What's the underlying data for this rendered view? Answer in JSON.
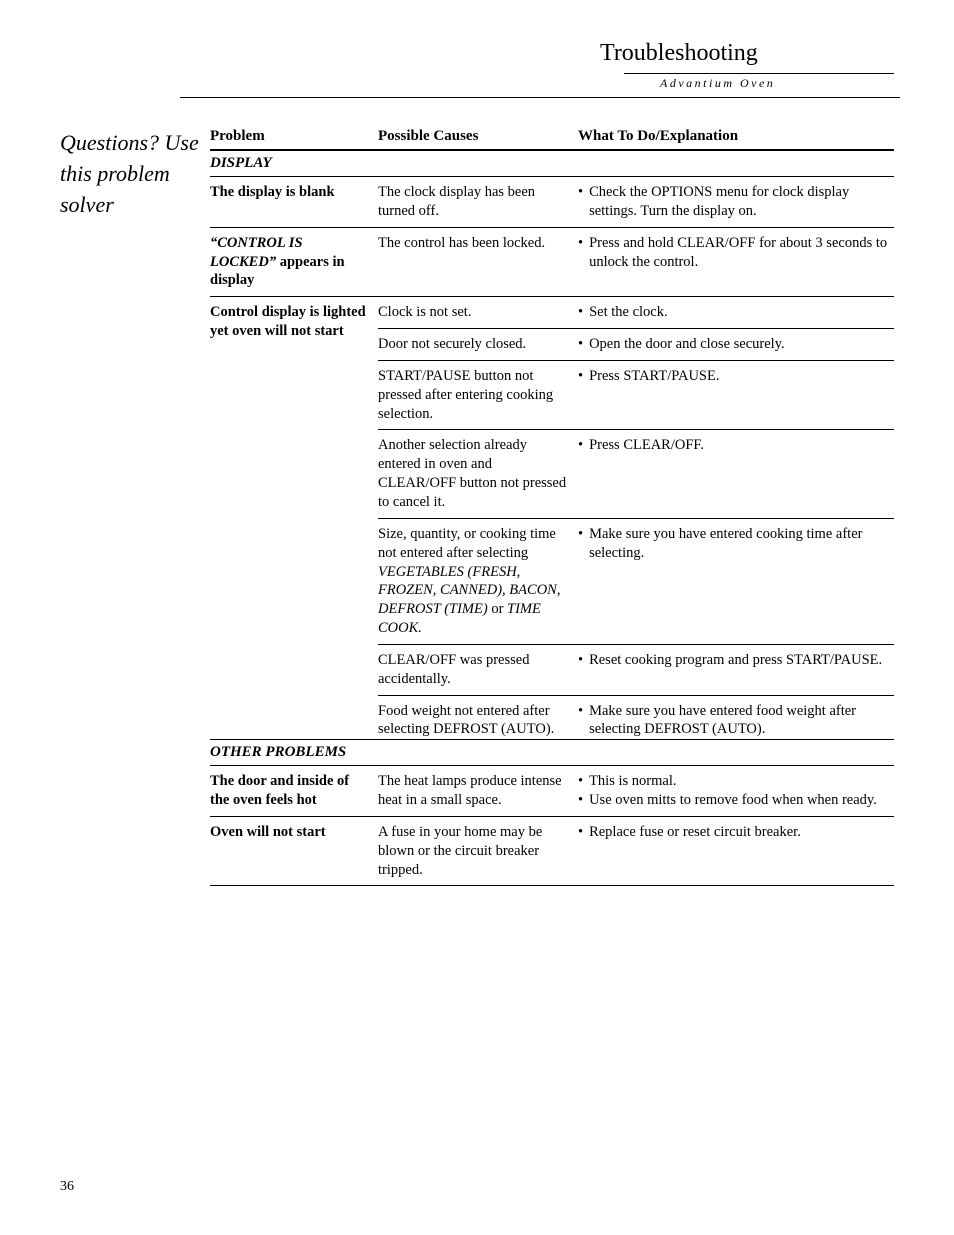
{
  "header": {
    "title": "Troubleshooting",
    "subtitle": "Advantium Oven"
  },
  "sidebar": {
    "text": "Questions? Use this problem solver"
  },
  "columns": {
    "problem": "Problem",
    "cause": "Possible Causes",
    "fix": "What To Do/Explanation"
  },
  "sections": {
    "display": "DISPLAY",
    "other": "OTHER PROBLEMS"
  },
  "rows": {
    "blank": {
      "problem": "The display is blank",
      "cause": "The clock display has been turned off.",
      "fix": "Check the OPTIONS menu for clock display settings. Turn the display on."
    },
    "locked": {
      "problem_quoted": "“CONTROL IS LOCKED”",
      "problem_rest": " appears in display",
      "cause": "The control has been locked.",
      "fix": "Press and hold CLEAR/OFF for about 3 seconds to unlock the control."
    },
    "lighted": {
      "problem": "Control display is lighted yet oven will not start",
      "r1": {
        "cause": "Clock is not set.",
        "fix": "Set the clock."
      },
      "r2": {
        "cause": "Door not securely closed.",
        "fix": "Open the door and close securely."
      },
      "r3": {
        "cause": "START/PAUSE button not pressed after entering cooking selection.",
        "fix": "Press START/PAUSE."
      },
      "r4": {
        "cause": "Another selection already entered in oven and CLEAR/OFF button not pressed to cancel it.",
        "fix": "Press CLEAR/OFF."
      },
      "r5": {
        "cause_pre": "Size, quantity, or cooking time not entered after selecting ",
        "cause_ital1": "VEGETABLES (FRESH, FROZEN, CANNED), BACON, DEFROST (TIME)",
        "cause_mid": " or ",
        "cause_ital2": "TIME COOK.",
        "fix": "Make sure you have entered cooking time after selecting."
      },
      "r6": {
        "cause": "CLEAR/OFF was pressed accidentally.",
        "fix": "Reset cooking program and press START/PAUSE."
      },
      "r7": {
        "cause": "Food weight not entered after selecting DEFROST (AUTO).",
        "fix": "Make sure you have entered food weight after selecting DEFROST (AUTO)."
      }
    },
    "hot": {
      "problem": "The door and inside of the oven feels hot",
      "cause": "The heat lamps produce intense heat in a small space.",
      "fix1": "This is normal.",
      "fix2": "Use oven mitts to remove food when when ready."
    },
    "nostart": {
      "problem": "Oven will not start",
      "cause": "A fuse in your home may be blown or the circuit breaker tripped.",
      "fix": "Replace fuse or reset circuit breaker."
    }
  },
  "pageNumber": "36"
}
